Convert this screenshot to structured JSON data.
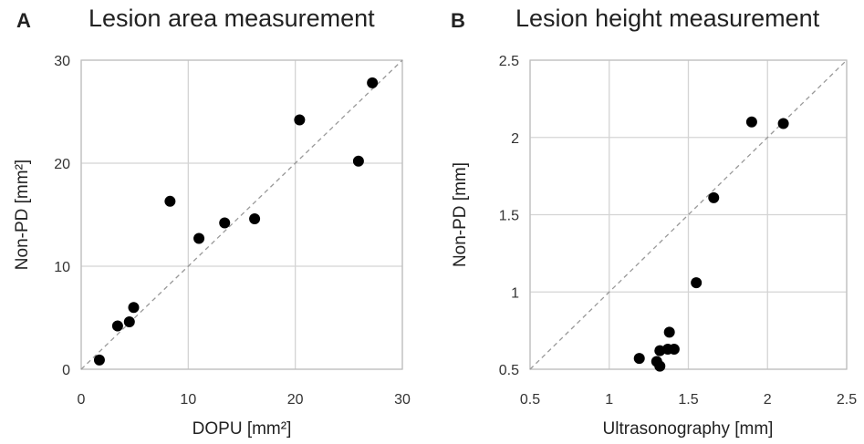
{
  "chart_data": [
    {
      "type": "scatter",
      "panel": "A",
      "title": "Lesion area measurement",
      "xlabel": "DOPU [mm²]",
      "ylabel": "Non-PD [mm²]",
      "xlim": [
        0,
        30
      ],
      "ylim": [
        0,
        30
      ],
      "xticks": [
        "0",
        "10",
        "20",
        "30"
      ],
      "yticks": [
        "0",
        "10",
        "20",
        "30"
      ],
      "grid": true,
      "reference_line": "y = x (dashed)",
      "points": [
        {
          "x": 1.7,
          "y": 0.9
        },
        {
          "x": 3.4,
          "y": 4.2
        },
        {
          "x": 4.5,
          "y": 4.6
        },
        {
          "x": 4.9,
          "y": 6.0
        },
        {
          "x": 8.3,
          "y": 16.3
        },
        {
          "x": 11.0,
          "y": 12.7
        },
        {
          "x": 13.4,
          "y": 14.2
        },
        {
          "x": 16.2,
          "y": 14.6
        },
        {
          "x": 20.4,
          "y": 24.2
        },
        {
          "x": 25.9,
          "y": 20.2
        },
        {
          "x": 27.2,
          "y": 27.8
        }
      ]
    },
    {
      "type": "scatter",
      "panel": "B",
      "title": "Lesion height measurement",
      "xlabel": "Ultrasonography [mm]",
      "ylabel": "Non-PD [mm]",
      "xlim": [
        0.5,
        2.5
      ],
      "ylim": [
        0.5,
        2.5
      ],
      "xticks": [
        "0.5",
        "1",
        "1.5",
        "2",
        "2.5"
      ],
      "yticks": [
        "0.5",
        "1",
        "1.5",
        "2",
        "2.5"
      ],
      "grid": true,
      "reference_line": "y = x (dashed)",
      "points": [
        {
          "x": 1.19,
          "y": 0.57
        },
        {
          "x": 1.3,
          "y": 0.55
        },
        {
          "x": 1.32,
          "y": 0.52
        },
        {
          "x": 1.32,
          "y": 0.62
        },
        {
          "x": 1.37,
          "y": 0.63
        },
        {
          "x": 1.38,
          "y": 0.74
        },
        {
          "x": 1.41,
          "y": 0.63
        },
        {
          "x": 1.55,
          "y": 1.06
        },
        {
          "x": 1.66,
          "y": 1.61
        },
        {
          "x": 1.9,
          "y": 2.1
        },
        {
          "x": 2.1,
          "y": 2.09
        }
      ]
    }
  ],
  "colors": {
    "grid": "#d4d4d4",
    "frame": "#bfbfbf",
    "marker": "#000000",
    "reference_line": "#999999"
  }
}
